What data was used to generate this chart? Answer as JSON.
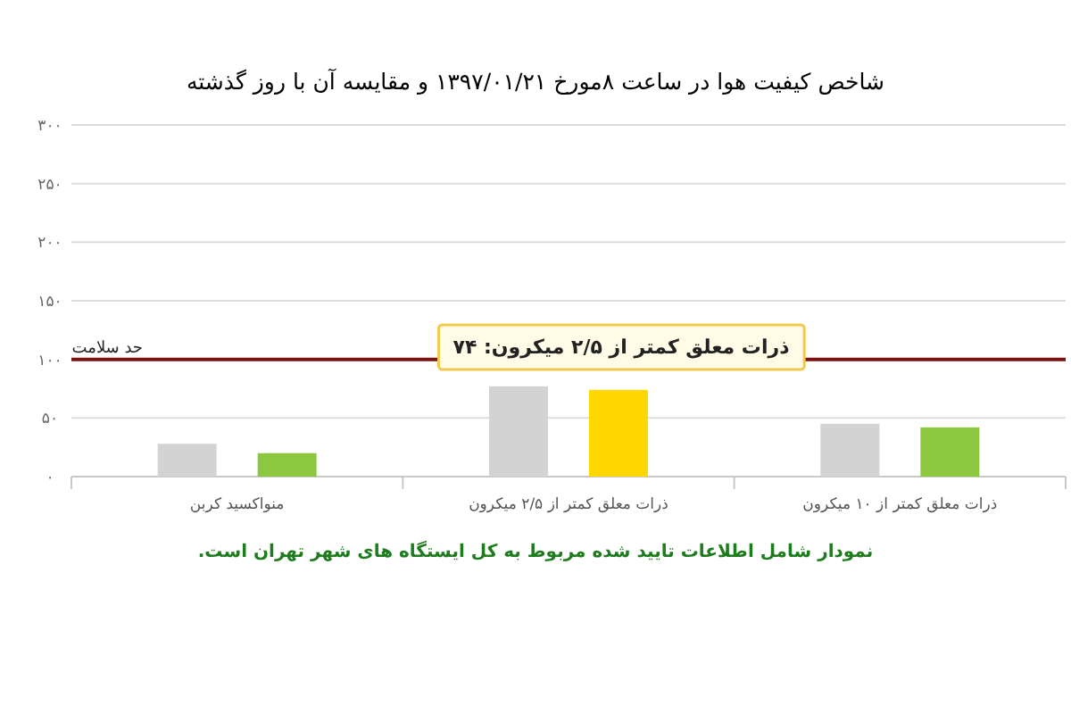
{
  "chart_data": {
    "type": "bar",
    "title": "شاخص کیفیت هوا در ساعت ۸مورخ ۱۳۹۷/۰۱/۲۱ و مقایسه آن با روز گذشته",
    "categories": [
      "منواکسید کربن",
      "ذرات معلق کمتر از ۲/۵ میکرون",
      "ذرات معلق کمتر از ۱۰ میکرون"
    ],
    "series": [
      {
        "color": "#d3d3d3",
        "values": [
          28,
          77,
          45
        ]
      },
      {
        "colors": [
          "#8dc63f",
          "#ffd700",
          "#8dc63f"
        ],
        "values": [
          20,
          74,
          42
        ]
      }
    ],
    "ylim": [
      0,
      300
    ],
    "yticks": [
      {
        "value": 0,
        "label": "۰"
      },
      {
        "value": 50,
        "label": "۵۰"
      },
      {
        "value": 100,
        "label": "۱۰۰"
      },
      {
        "value": 150,
        "label": "۱۵۰"
      },
      {
        "value": 200,
        "label": "۲۰۰"
      },
      {
        "value": 250,
        "label": "۲۵۰"
      },
      {
        "value": 300,
        "label": "۳۰۰"
      }
    ],
    "grid": "y",
    "ref_lines": [
      {
        "axis": "y",
        "value": 100,
        "label": "حد سلامت",
        "color": "#7b1113"
      }
    ],
    "annotations": [
      "ذرات معلق کمتر از ۲/۵ میکرون: ۷۴",
      "نمودار شامل اطلاعات تایید شده مربوط به کل ایستگاه های شهر تهران است."
    ]
  }
}
